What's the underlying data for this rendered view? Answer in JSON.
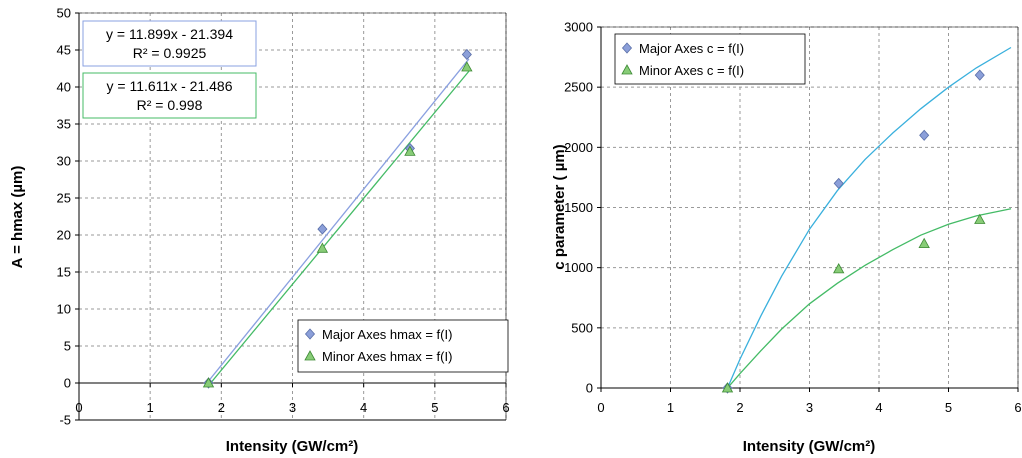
{
  "chart_data": [
    {
      "type": "scatter",
      "xlabel": "Intensity (GW/cm²)",
      "ylabel": "A = hmax (µm)",
      "xlim": [
        0,
        6
      ],
      "ylim": [
        -5,
        50
      ],
      "xticks": [
        "0",
        "1",
        "2",
        "3",
        "4",
        "5",
        "6"
      ],
      "yticks": [
        "-5",
        "0",
        "5",
        "10",
        "15",
        "20",
        "25",
        "30",
        "35",
        "40",
        "45",
        "50"
      ],
      "grid": true,
      "legend": "bottom-right",
      "series": [
        {
          "name": "Major Axes hmax = f(I)",
          "marker": "diamond",
          "color": "#8b9fd9",
          "x": [
            1.82,
            3.42,
            4.65,
            5.45
          ],
          "y": [
            0,
            20.8,
            31.7,
            44.4
          ],
          "trend": {
            "type": "linear",
            "slope": 11.899,
            "intercept": -21.394,
            "color": "#8aa0e0",
            "equation": "y = 11.899x - 21.394",
            "r2": "R² = 0.9925"
          }
        },
        {
          "name": "Minor Axes hmax = f(I)",
          "marker": "triangle",
          "color": "#88cc77",
          "x": [
            1.82,
            3.42,
            4.65,
            5.45
          ],
          "y": [
            0,
            18.2,
            31.3,
            42.7
          ],
          "trend": {
            "type": "linear",
            "slope": 11.611,
            "intercept": -21.486,
            "color": "#44bb66",
            "equation": "y = 11.611x - 21.486",
            "r2": "R² = 0.998"
          }
        }
      ]
    },
    {
      "type": "scatter",
      "xlabel": "Intensity (GW/cm²)",
      "ylabel": "c parameter ( µm)",
      "xlim": [
        0,
        6
      ],
      "ylim": [
        0,
        3000
      ],
      "xticks": [
        "0",
        "1",
        "2",
        "3",
        "4",
        "5",
        "6"
      ],
      "yticks": [
        "0",
        "500",
        "1000",
        "1500",
        "2000",
        "2500",
        "3000"
      ],
      "grid": true,
      "legend": "top-left",
      "series": [
        {
          "name": "Major Axes c = f(I)",
          "marker": "diamond",
          "color": "#8b9fd9",
          "x": [
            1.82,
            3.42,
            4.65,
            5.45
          ],
          "y": [
            0,
            1700,
            2100,
            2600
          ],
          "trend": {
            "type": "curve",
            "color": "#3ab0dd",
            "x": [
              1.82,
              2.0,
              2.3,
              2.6,
              3.0,
              3.4,
              3.8,
              4.2,
              4.6,
              5.0,
              5.4,
              5.9
            ],
            "y": [
              0,
              240,
              600,
              930,
              1320,
              1640,
              1900,
              2120,
              2320,
              2500,
              2660,
              2830
            ]
          }
        },
        {
          "name": "Minor Axes c = f(I)",
          "marker": "triangle",
          "color": "#88cc77",
          "x": [
            1.82,
            3.42,
            4.65,
            5.45
          ],
          "y": [
            0,
            990,
            1200,
            1400
          ],
          "trend": {
            "type": "curve",
            "color": "#44bb66",
            "x": [
              1.82,
              2.0,
              2.3,
              2.6,
              3.0,
              3.4,
              3.8,
              4.2,
              4.6,
              5.0,
              5.4,
              5.9
            ],
            "y": [
              0,
              120,
              310,
              490,
              700,
              870,
              1020,
              1150,
              1270,
              1360,
              1430,
              1490
            ]
          }
        }
      ]
    }
  ]
}
